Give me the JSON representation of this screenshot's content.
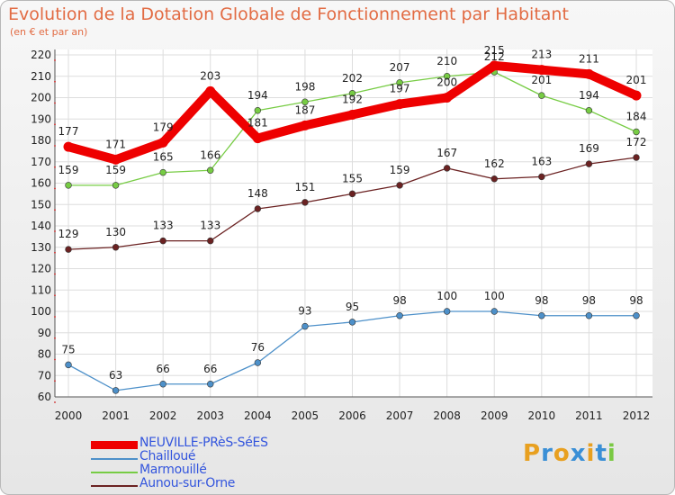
{
  "chart_data": {
    "type": "line",
    "title": "Evolution de la Dotation Globale de Fonctionnement par Habitant",
    "subtitle": "(en € et par an)",
    "xlabel": "",
    "ylabel": "",
    "categories": [
      "2000",
      "2001",
      "2002",
      "2003",
      "2004",
      "2005",
      "2006",
      "2007",
      "2008",
      "2009",
      "2010",
      "2011",
      "2012"
    ],
    "ylim": [
      60,
      220
    ],
    "yticks": [
      60,
      70,
      80,
      90,
      100,
      110,
      120,
      130,
      140,
      150,
      160,
      170,
      180,
      190,
      200,
      210,
      220
    ],
    "grid": true,
    "series": [
      {
        "name": "NEUVILLE-PRèS-SéES",
        "color": "#ee0000",
        "values": [
          177,
          171,
          179,
          203,
          181,
          187,
          192,
          197,
          200,
          215,
          213,
          211,
          201
        ]
      },
      {
        "name": "Chailloué",
        "color": "#4d90c9",
        "values": [
          75,
          63,
          66,
          66,
          76,
          93,
          95,
          98,
          100,
          100,
          98,
          98,
          98
        ]
      },
      {
        "name": "Marmouillé",
        "color": "#77cc44",
        "values": [
          159,
          159,
          165,
          166,
          194,
          198,
          202,
          207,
          210,
          212,
          201,
          194,
          184
        ]
      },
      {
        "name": "Aunou-sur-Orne",
        "color": "#6b2222",
        "values": [
          129,
          130,
          133,
          133,
          148,
          151,
          155,
          159,
          167,
          162,
          163,
          169,
          172
        ]
      }
    ]
  },
  "legend": {
    "items": [
      {
        "label": "NEUVILLE-PRèS-SéES",
        "color": "#ee0000"
      },
      {
        "label": "Chailloué",
        "color": "#4d90c9"
      },
      {
        "label": "Marmouillé",
        "color": "#77cc44"
      },
      {
        "label": "Aunou-sur-Orne",
        "color": "#6b2222"
      }
    ]
  },
  "logo": {
    "text": "Proxiti"
  }
}
